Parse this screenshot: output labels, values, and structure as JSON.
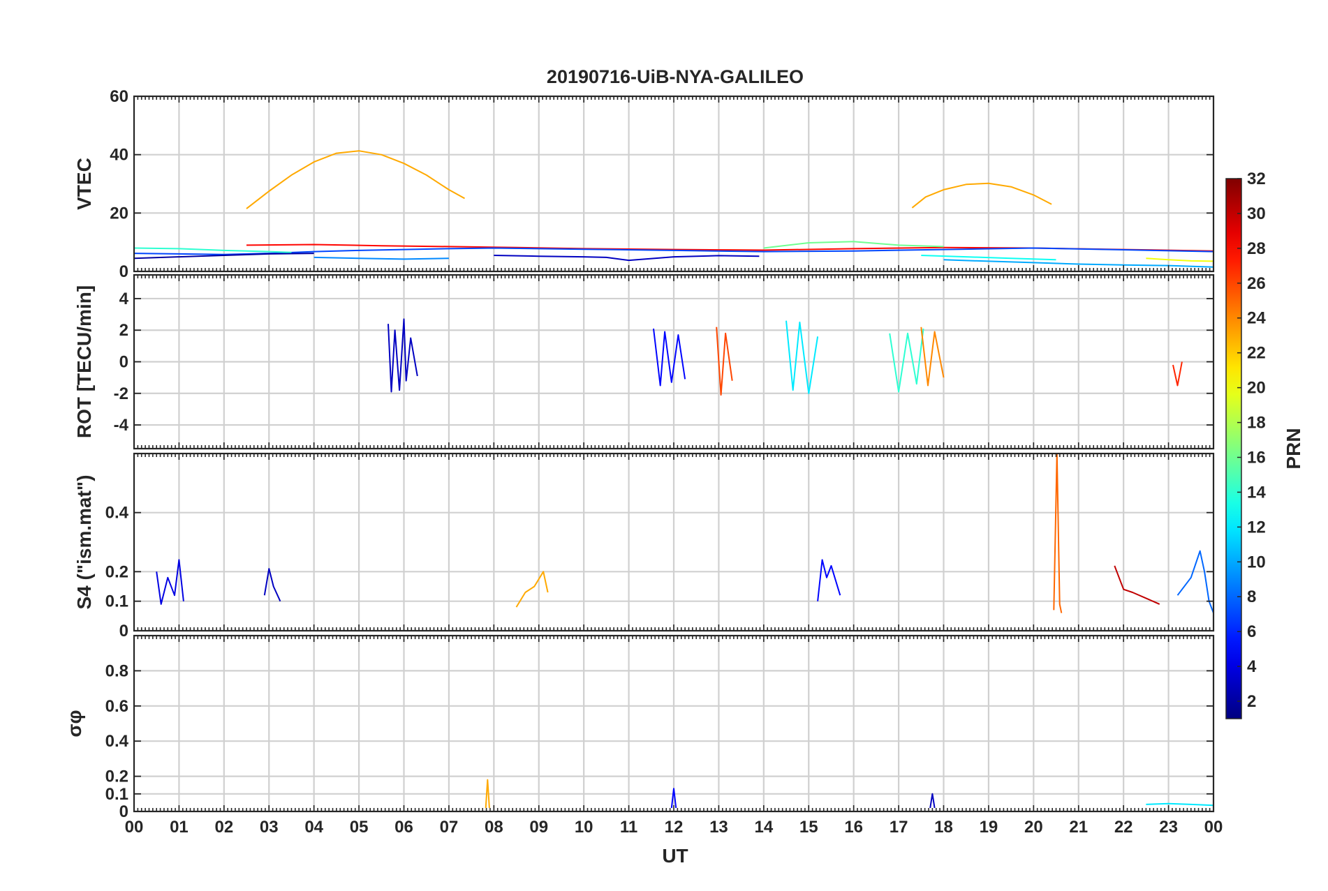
{
  "chart_data": {
    "type": "line",
    "title": "20190716-UiB-NYA-GALILEO",
    "xlabel": "UT",
    "x_range": [
      0,
      24
    ],
    "x_tick_labels": [
      "00",
      "01",
      "02",
      "03",
      "04",
      "05",
      "06",
      "07",
      "08",
      "09",
      "10",
      "11",
      "12",
      "13",
      "14",
      "15",
      "16",
      "17",
      "18",
      "19",
      "20",
      "21",
      "22",
      "23",
      "00"
    ],
    "colorbar": {
      "label": "PRN",
      "range": [
        1,
        32
      ],
      "ticks": [
        2,
        4,
        6,
        8,
        10,
        12,
        14,
        16,
        18,
        20,
        22,
        24,
        26,
        28,
        30,
        32
      ],
      "colormap": "jet"
    },
    "panels": [
      {
        "name": "vtec",
        "ylabel": "VTEC",
        "ylim": [
          0,
          60
        ],
        "yticks": [
          0,
          20,
          40,
          60
        ],
        "series": [
          {
            "prn": 23,
            "x": [
              2.5,
              3.0,
              3.5,
              4.0,
              4.5,
              5.0,
              5.5,
              6.0,
              6.5,
              7.0,
              7.35
            ],
            "y": [
              21.5,
              27.5,
              33.0,
              37.5,
              40.5,
              41.3,
              40.0,
              37.0,
              33.0,
              28.0,
              25.0
            ]
          },
          {
            "prn": 23,
            "x": [
              17.3,
              17.6,
              18.0,
              18.5,
              19.0,
              19.5,
              20.0,
              20.4
            ],
            "y": [
              21.8,
              25.5,
              28.0,
              29.8,
              30.2,
              29.0,
              26.2,
              23.0
            ]
          },
          {
            "prn": 28,
            "x": [
              2.5,
              4.0,
              5.5,
              7.0,
              8.5,
              10.0,
              12.0,
              14.0,
              16.0,
              18.0,
              20.0,
              22.0,
              24.0
            ],
            "y": [
              9.0,
              9.2,
              8.8,
              8.5,
              8.2,
              7.8,
              7.5,
              7.3,
              7.8,
              8.2,
              8.0,
              7.5,
              7.0
            ]
          },
          {
            "prn": 7,
            "x": [
              0,
              1.0,
              2.0,
              3.0,
              4.0,
              5.0,
              6.0,
              7.0,
              8.0,
              10.0,
              12.0,
              14.0,
              16.0,
              18.0,
              20.0,
              22.0,
              24.0
            ],
            "y": [
              6.2,
              6.0,
              5.8,
              6.2,
              6.8,
              7.2,
              7.5,
              7.8,
              8.0,
              7.6,
              7.2,
              6.8,
              7.0,
              7.5,
              8.0,
              7.4,
              6.8
            ]
          },
          {
            "prn": 14,
            "x": [
              0,
              1.0,
              2.0,
              3.0,
              3.5
            ],
            "y": [
              8.0,
              7.8,
              7.2,
              6.8,
              6.5
            ]
          },
          {
            "prn": 2,
            "x": [
              0,
              1.0,
              2.0,
              3.0,
              4.0
            ],
            "y": [
              4.5,
              5.0,
              5.5,
              6.0,
              6.2
            ]
          },
          {
            "prn": 9,
            "x": [
              4.0,
              5.0,
              6.0,
              7.0
            ],
            "y": [
              4.8,
              4.5,
              4.2,
              4.5
            ]
          },
          {
            "prn": 3,
            "x": [
              8.0,
              9.0,
              10.0,
              10.5,
              11.0,
              12.0,
              13.0,
              13.9
            ],
            "y": [
              5.5,
              5.2,
              5.0,
              4.8,
              3.8,
              5.0,
              5.4,
              5.2
            ]
          },
          {
            "prn": 16,
            "x": [
              14.0,
              15.0,
              16.0,
              17.0,
              18.0
            ],
            "y": [
              8.0,
              9.8,
              10.2,
              9.0,
              8.5
            ]
          },
          {
            "prn": 13,
            "x": [
              17.5,
              18.5,
              19.5,
              20.5
            ],
            "y": [
              5.5,
              5.0,
              4.5,
              4.0
            ]
          },
          {
            "prn": 10,
            "x": [
              18.0,
              19.0,
              20.0,
              21.0,
              22.0,
              23.0,
              24.0
            ],
            "y": [
              4.0,
              3.5,
              3.0,
              2.5,
              2.2,
              2.0,
              1.5
            ]
          },
          {
            "prn": 20,
            "x": [
              22.5,
              23.0,
              23.5,
              24.0
            ],
            "y": [
              4.5,
              4.0,
              3.6,
              3.5
            ]
          }
        ]
      },
      {
        "name": "rot",
        "ylabel": "ROT [TECU/min]",
        "ylim": [
          -5.5,
          5.5
        ],
        "yticks": [
          -4,
          -2,
          0,
          2,
          4
        ],
        "series": [
          {
            "prn": 3,
            "x": [
              5.65,
              5.72,
              5.8,
              5.9,
              6.0,
              6.05,
              6.15,
              6.3
            ],
            "y": [
              2.4,
              -1.9,
              2.0,
              -1.8,
              2.7,
              -1.2,
              1.5,
              -0.9
            ]
          },
          {
            "prn": 5,
            "x": [
              11.55,
              11.7,
              11.8,
              11.95,
              12.1,
              12.25
            ],
            "y": [
              2.1,
              -1.5,
              1.9,
              -1.3,
              1.7,
              -1.1
            ]
          },
          {
            "prn": 26,
            "x": [
              12.95,
              13.05,
              13.15,
              13.3
            ],
            "y": [
              2.2,
              -2.1,
              1.8,
              -1.2
            ]
          },
          {
            "prn": 12,
            "x": [
              14.5,
              14.65,
              14.8,
              15.0,
              15.2
            ],
            "y": [
              2.6,
              -1.8,
              2.5,
              -2.0,
              1.6
            ]
          },
          {
            "prn": 14,
            "x": [
              16.8,
              17.0,
              17.2,
              17.4,
              17.55
            ],
            "y": [
              1.8,
              -1.9,
              1.8,
              -1.4,
              2.1
            ]
          },
          {
            "prn": 24,
            "x": [
              17.5,
              17.65,
              17.8,
              18.0
            ],
            "y": [
              2.2,
              -1.5,
              1.9,
              -1.0
            ]
          },
          {
            "prn": 27,
            "x": [
              23.1,
              23.2,
              23.3
            ],
            "y": [
              -0.2,
              -1.5,
              0.0
            ]
          }
        ]
      },
      {
        "name": "s4",
        "ylabel": "S4 (\"ism.mat\")",
        "ylim": [
          0,
          0.6
        ],
        "yticks": [
          0,
          0.1,
          0.2,
          0.4
        ],
        "series": [
          {
            "prn": 4,
            "x": [
              0.5,
              0.6,
              0.75,
              0.9,
              1.0,
              1.1
            ],
            "y": [
              0.2,
              0.09,
              0.18,
              0.12,
              0.24,
              0.1
            ]
          },
          {
            "prn": 3,
            "x": [
              2.9,
              3.0,
              3.1,
              3.25
            ],
            "y": [
              0.12,
              0.21,
              0.15,
              0.1
            ]
          },
          {
            "prn": 23,
            "x": [
              8.5,
              8.7,
              8.9,
              9.1,
              9.2
            ],
            "y": [
              0.08,
              0.13,
              0.15,
              0.2,
              0.13
            ]
          },
          {
            "prn": 5,
            "x": [
              15.2,
              15.3,
              15.4,
              15.5,
              15.7
            ],
            "y": [
              0.1,
              0.24,
              0.18,
              0.22,
              0.12
            ]
          },
          {
            "prn": 25,
            "x": [
              20.45,
              20.52,
              20.58,
              20.62
            ],
            "y": [
              0.07,
              0.6,
              0.09,
              0.06
            ]
          },
          {
            "prn": 30,
            "x": [
              21.8,
              22.0,
              22.2,
              22.5,
              22.8
            ],
            "y": [
              0.22,
              0.14,
              0.13,
              0.11,
              0.09
            ]
          },
          {
            "prn": 8,
            "x": [
              23.2,
              23.5,
              23.7,
              23.8,
              23.9,
              24.0
            ],
            "y": [
              0.12,
              0.18,
              0.27,
              0.2,
              0.1,
              0.06
            ]
          }
        ]
      },
      {
        "name": "sigma_phi",
        "ylabel": "σφ",
        "ylim": [
          0,
          1.0
        ],
        "yticks": [
          0,
          0.1,
          0.2,
          0.4,
          0.6,
          0.8
        ],
        "series": [
          {
            "prn": 23,
            "x": [
              7.82,
              7.86,
              7.9
            ],
            "y": [
              0.02,
              0.18,
              0.02
            ]
          },
          {
            "prn": 5,
            "x": [
              11.95,
              12.0,
              12.05
            ],
            "y": [
              0.02,
              0.13,
              0.02
            ]
          },
          {
            "prn": 3,
            "x": [
              17.7,
              17.75,
              17.8
            ],
            "y": [
              0.02,
              0.1,
              0.02
            ]
          },
          {
            "prn": 12,
            "x": [
              22.5,
              23.0,
              23.5,
              24.0
            ],
            "y": [
              0.04,
              0.045,
              0.04,
              0.035
            ]
          }
        ]
      }
    ]
  }
}
